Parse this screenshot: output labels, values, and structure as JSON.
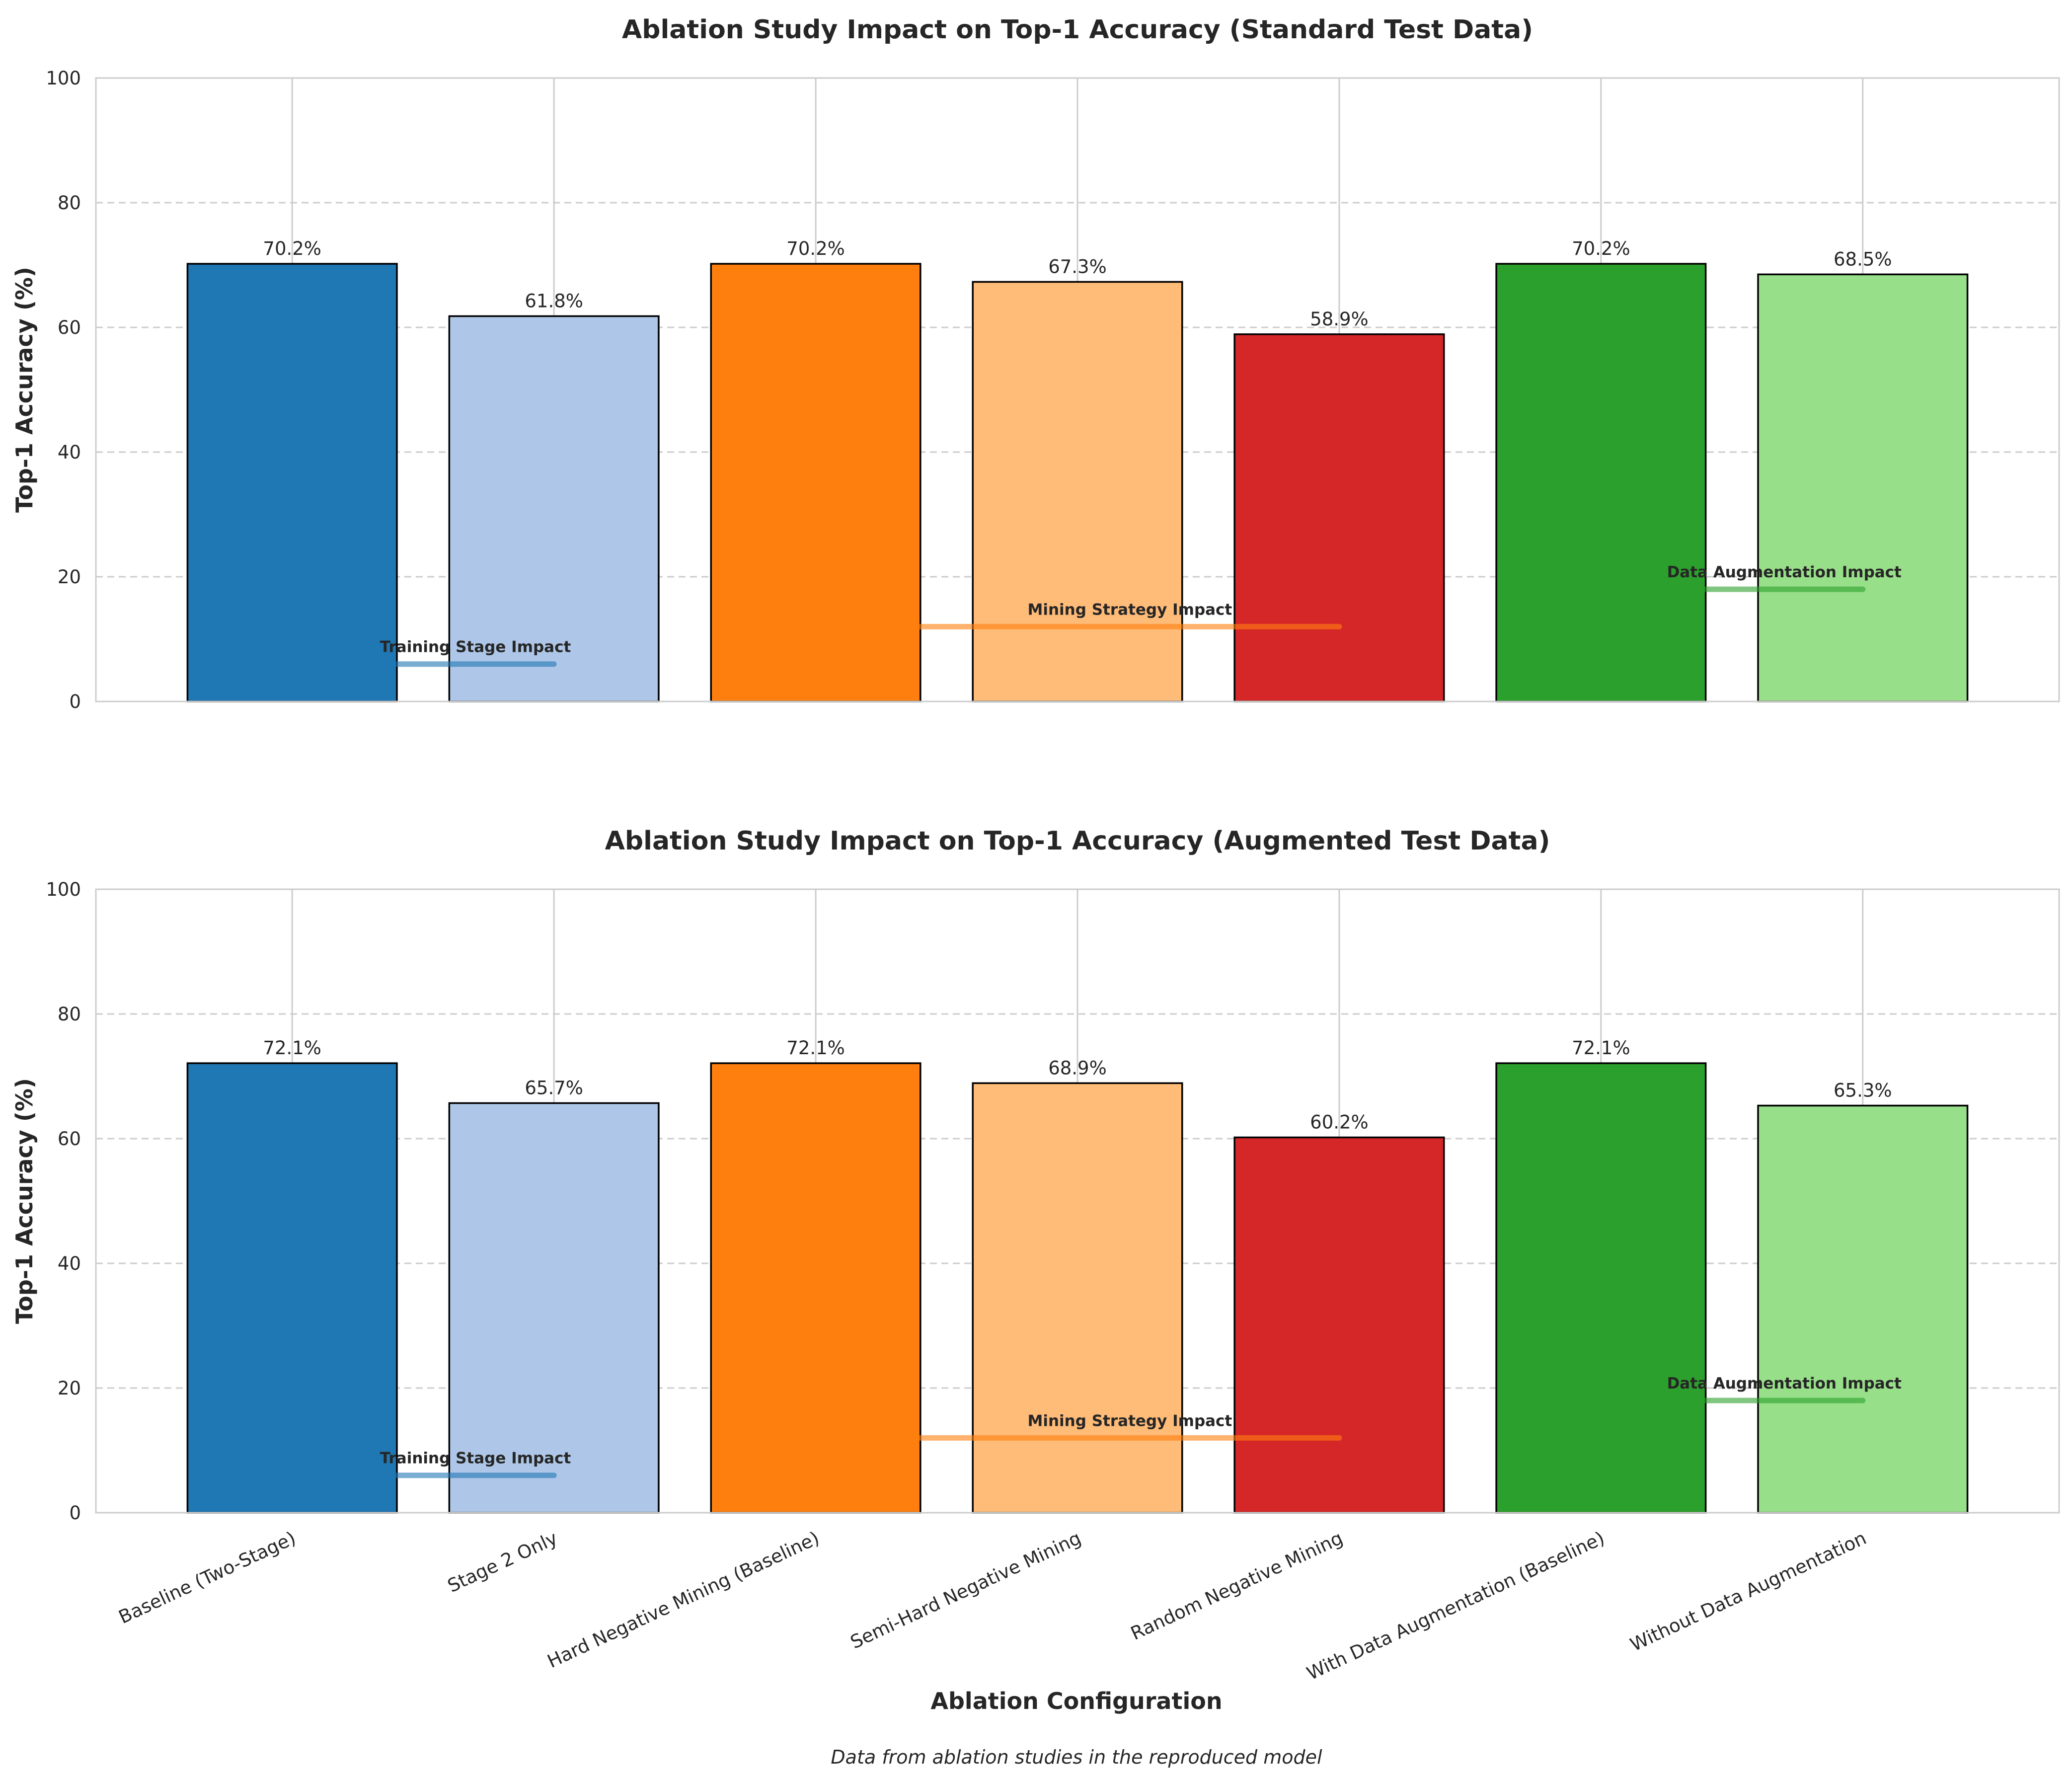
{
  "chart_data": {
    "type": "bar",
    "categories": [
      "Baseline (Two-Stage)",
      "Stage 2 Only",
      "Hard Negative Mining (Baseline)",
      "Semi-Hard Negative Mining",
      "Random Negative Mining",
      "With Data Augmentation (Baseline)",
      "Without Data Augmentation"
    ],
    "bar_colors": [
      "#1f77b4",
      "#aec7e8",
      "#ff7f0e",
      "#ffbb78",
      "#d62728",
      "#2ca02c",
      "#98df8a"
    ],
    "panels": [
      {
        "title": "Ablation Study Impact on Top-1 Accuracy (Standard Test Data)",
        "ylabel": "Top-1 Accuracy (%)",
        "values": [
          70.2,
          61.8,
          70.2,
          67.3,
          58.9,
          70.2,
          68.5
        ],
        "value_labels": [
          "70.2%",
          "61.8%",
          "70.2%",
          "67.3%",
          "58.9%",
          "70.2%",
          "68.5%"
        ]
      },
      {
        "title": "Ablation Study Impact on Top-1 Accuracy (Augmented Test Data)",
        "ylabel": "Top-1 Accuracy (%)",
        "values": [
          72.1,
          65.7,
          72.1,
          68.9,
          60.2,
          72.1,
          65.3
        ],
        "value_labels": [
          "72.1%",
          "65.7%",
          "72.1%",
          "68.9%",
          "60.2%",
          "72.1%",
          "65.3%"
        ]
      }
    ],
    "ylim": [
      0,
      100
    ],
    "yticks": [
      0,
      20,
      40,
      60,
      80,
      100
    ],
    "xlabel": "Ablation Configuration",
    "grid": true,
    "annotations": [
      {
        "label": "Training Stage Impact",
        "group_start": 0,
        "group_end": 1,
        "y": 6,
        "color": "#1f77b4"
      },
      {
        "label": "Mining Strategy Impact",
        "group_start": 2,
        "group_end": 4,
        "y": 12,
        "color": "#ff7f0e"
      },
      {
        "label": "Data Augmentation Impact",
        "group_start": 5,
        "group_end": 6,
        "y": 18,
        "color": "#2ca02c"
      }
    ],
    "footnote": "Data from ablation studies in the reproduced model"
  }
}
